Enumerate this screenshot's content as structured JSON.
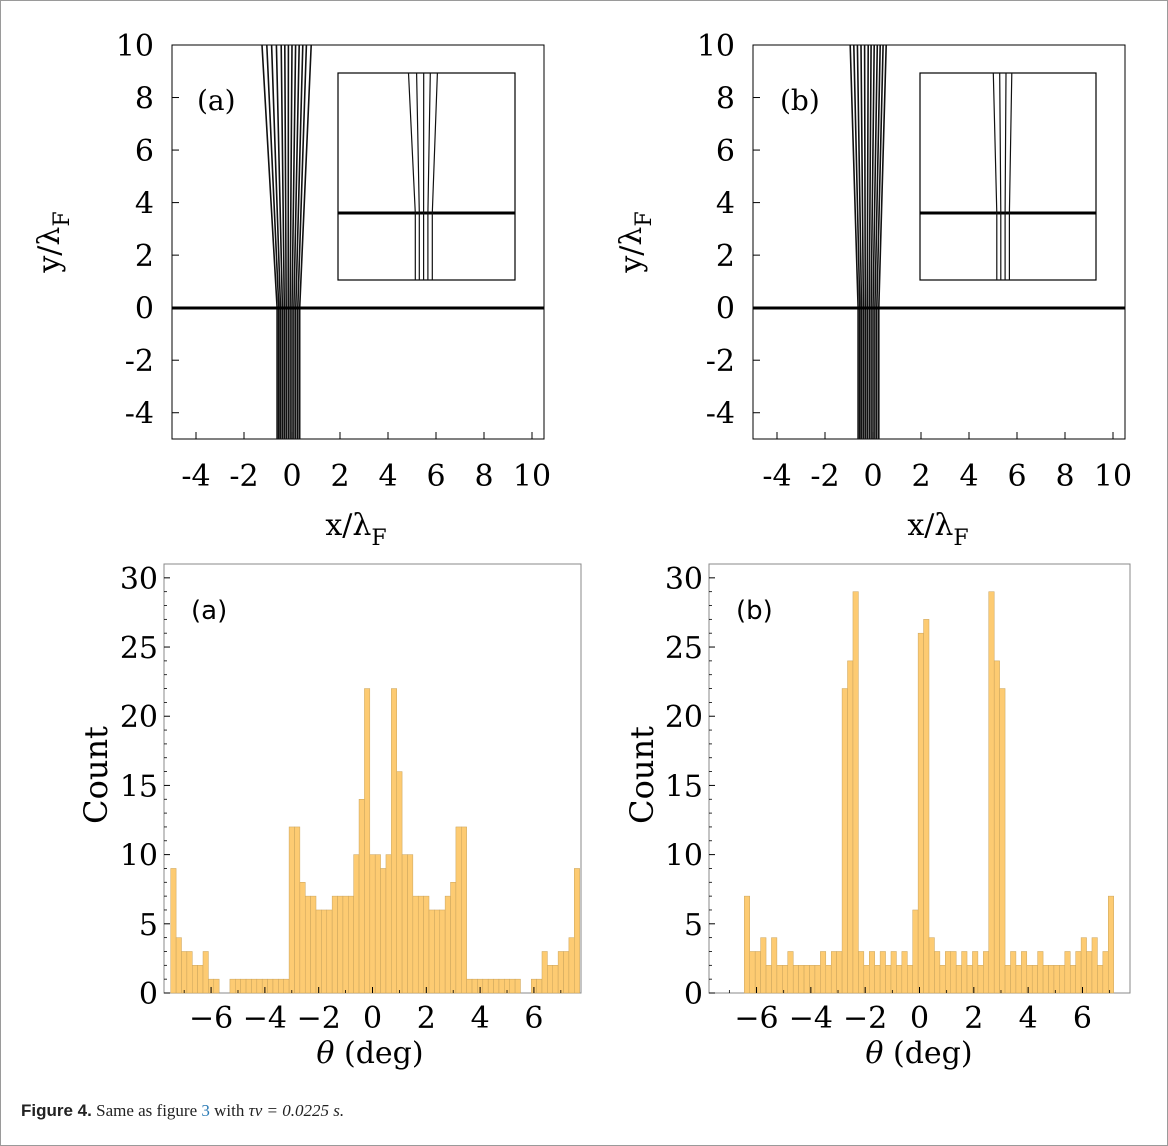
{
  "caption": {
    "label": "Figure 4.",
    "text_before": "Same as figure",
    "ref": "3",
    "text_after_ref": "with",
    "math": "τν = 0.0225 s."
  },
  "chart_data": [
    {
      "type": "line",
      "panel_label": "(a)",
      "xlabel": "x/λF",
      "ylabel": "y/λF",
      "xlim": [
        -5,
        10.5
      ],
      "ylim": [
        -5,
        10
      ],
      "xticks": [
        "-4",
        "-2",
        "0",
        "2",
        "4",
        "6",
        "8",
        "10"
      ],
      "yticks": [
        "-4",
        "-2",
        "0",
        "2",
        "4",
        "6",
        "8",
        "10"
      ],
      "series": [
        {
          "values": [
            [
              -0.62,
              -5
            ],
            [
              -0.62,
              0
            ],
            [
              -1.25,
              10
            ]
          ]
        },
        {
          "values": [
            [
              -0.55,
              -5
            ],
            [
              -0.55,
              0
            ],
            [
              -1.05,
              10
            ]
          ]
        },
        {
          "values": [
            [
              -0.48,
              -5
            ],
            [
              -0.48,
              0
            ],
            [
              -0.85,
              10
            ]
          ]
        },
        {
          "values": [
            [
              -0.4,
              -5
            ],
            [
              -0.4,
              0
            ],
            [
              -0.65,
              10
            ]
          ]
        },
        {
          "values": [
            [
              -0.32,
              -5
            ],
            [
              -0.32,
              0
            ],
            [
              -0.45,
              10
            ]
          ]
        },
        {
          "values": [
            [
              -0.24,
              -5
            ],
            [
              -0.24,
              0
            ],
            [
              -0.3,
              10
            ]
          ]
        },
        {
          "values": [
            [
              -0.16,
              -5
            ],
            [
              -0.16,
              0
            ],
            [
              -0.15,
              10
            ]
          ]
        },
        {
          "values": [
            [
              -0.08,
              -5
            ],
            [
              -0.08,
              0
            ],
            [
              0.0,
              10
            ]
          ]
        },
        {
          "values": [
            [
              0.0,
              -5
            ],
            [
              0.0,
              0
            ],
            [
              0.15,
              10
            ]
          ]
        },
        {
          "values": [
            [
              0.08,
              -5
            ],
            [
              0.08,
              0
            ],
            [
              0.3,
              10
            ]
          ]
        },
        {
          "values": [
            [
              0.16,
              -5
            ],
            [
              0.16,
              0
            ],
            [
              0.45,
              10
            ]
          ]
        },
        {
          "values": [
            [
              0.24,
              -5
            ],
            [
              0.24,
              0
            ],
            [
              0.6,
              10
            ]
          ]
        },
        {
          "values": [
            [
              0.32,
              -5
            ],
            [
              0.32,
              0
            ],
            [
              0.8,
              10
            ]
          ]
        }
      ]
    },
    {
      "type": "line",
      "panel_label": "(b)",
      "xlabel": "x/λF",
      "ylabel": "y/λF",
      "xlim": [
        -5,
        10.5
      ],
      "ylim": [
        -5,
        10
      ],
      "xticks": [
        "-4",
        "-2",
        "0",
        "2",
        "4",
        "6",
        "8",
        "10"
      ],
      "yticks": [
        "-4",
        "-2",
        "0",
        "2",
        "4",
        "6",
        "8",
        "10"
      ],
      "series": [
        {
          "values": [
            [
              -0.62,
              -5
            ],
            [
              -0.62,
              0
            ],
            [
              -0.95,
              10
            ]
          ]
        },
        {
          "values": [
            [
              -0.55,
              -5
            ],
            [
              -0.55,
              0
            ],
            [
              -0.8,
              10
            ]
          ]
        },
        {
          "values": [
            [
              -0.48,
              -5
            ],
            [
              -0.48,
              0
            ],
            [
              -0.65,
              10
            ]
          ]
        },
        {
          "values": [
            [
              -0.4,
              -5
            ],
            [
              -0.4,
              0
            ],
            [
              -0.5,
              10
            ]
          ]
        },
        {
          "values": [
            [
              -0.32,
              -5
            ],
            [
              -0.32,
              0
            ],
            [
              -0.35,
              10
            ]
          ]
        },
        {
          "values": [
            [
              -0.24,
              -5
            ],
            [
              -0.24,
              0
            ],
            [
              -0.2,
              10
            ]
          ]
        },
        {
          "values": [
            [
              -0.16,
              -5
            ],
            [
              -0.16,
              0
            ],
            [
              -0.08,
              10
            ]
          ]
        },
        {
          "values": [
            [
              -0.08,
              -5
            ],
            [
              -0.08,
              0
            ],
            [
              0.05,
              10
            ]
          ]
        },
        {
          "values": [
            [
              0.0,
              -5
            ],
            [
              0.0,
              0
            ],
            [
              0.18,
              10
            ]
          ]
        },
        {
          "values": [
            [
              0.08,
              -5
            ],
            [
              0.08,
              0
            ],
            [
              0.3,
              10
            ]
          ]
        },
        {
          "values": [
            [
              0.16,
              -5
            ],
            [
              0.16,
              0
            ],
            [
              0.42,
              10
            ]
          ]
        },
        {
          "values": [
            [
              0.24,
              -5
            ],
            [
              0.24,
              0
            ],
            [
              0.55,
              10
            ]
          ]
        }
      ]
    },
    {
      "type": "bar",
      "panel_label": "(a)",
      "xlabel": "θ (deg)",
      "ylabel": "Count",
      "xlim": [
        -7.75,
        7.75
      ],
      "ylim": [
        0,
        31
      ],
      "xticks": [
        -6,
        -4,
        -2,
        0,
        2,
        4,
        6
      ],
      "xtick_labels": [
        "−6",
        "−4",
        "−2",
        "0",
        "2",
        "4",
        "6"
      ],
      "yticks": [
        0,
        5,
        10,
        15,
        20,
        25,
        30
      ],
      "bin_start": -7.5,
      "bin_width": 0.2,
      "values": [
        9,
        4,
        3,
        3,
        2,
        2,
        3,
        1,
        1,
        0,
        0,
        1,
        1,
        1,
        1,
        1,
        1,
        1,
        1,
        1,
        1,
        1,
        12,
        12,
        8,
        7,
        7,
        6,
        6,
        6,
        7,
        7,
        7,
        7,
        10,
        14,
        22,
        10,
        10,
        9,
        10,
        22,
        16,
        10,
        10,
        7,
        7,
        7,
        6,
        6,
        6,
        7,
        8,
        12,
        12,
        1,
        1,
        1,
        1,
        1,
        1,
        1,
        1,
        1,
        1,
        0,
        0,
        1,
        1,
        3,
        2,
        2,
        3,
        3,
        4,
        9
      ]
    },
    {
      "type": "bar",
      "panel_label": "(b)",
      "xlabel": "θ (deg)",
      "ylabel": "Count",
      "xlim": [
        -7.75,
        7.75
      ],
      "ylim": [
        0,
        31
      ],
      "xticks": [
        -6,
        -4,
        -2,
        0,
        2,
        4,
        6
      ],
      "xtick_labels": [
        "−6",
        "−4",
        "−2",
        "0",
        "2",
        "4",
        "6"
      ],
      "yticks": [
        0,
        5,
        10,
        15,
        20,
        25,
        30
      ],
      "bin_start": -6.45,
      "bin_width": 0.2,
      "values": [
        7,
        3,
        3,
        4,
        2,
        4,
        2,
        2,
        3,
        2,
        2,
        2,
        2,
        2,
        3,
        2,
        3,
        3,
        22,
        24,
        29,
        3,
        2,
        3,
        2,
        3,
        2,
        3,
        2,
        3,
        2,
        6,
        26,
        27,
        4,
        3,
        2,
        3,
        3,
        2,
        3,
        2,
        3,
        2,
        3,
        29,
        24,
        22,
        2,
        3,
        2,
        3,
        2,
        2,
        3,
        2,
        2,
        2,
        2,
        3,
        2,
        3,
        4,
        3,
        4,
        2,
        3,
        7
      ]
    }
  ]
}
